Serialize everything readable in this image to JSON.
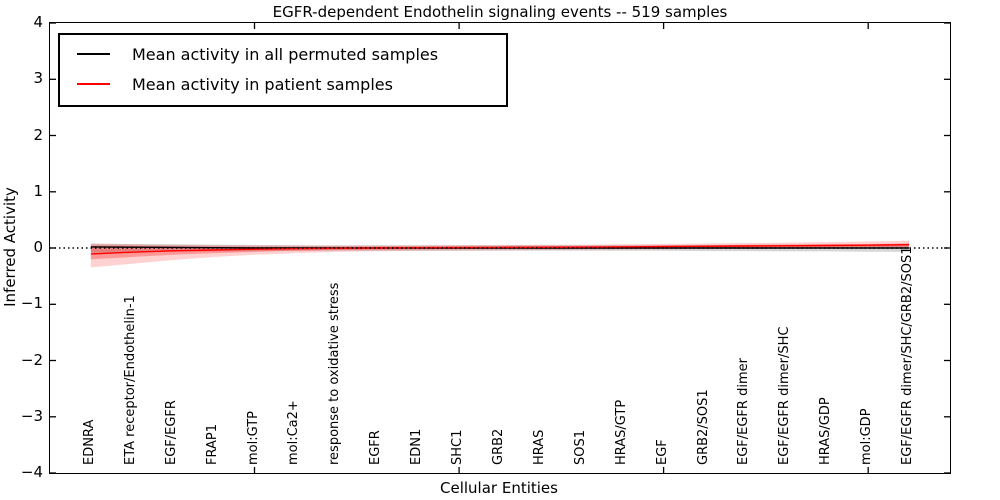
{
  "title": "EGFR-dependent Endothelin signaling events -- 519 samples",
  "legend": {
    "items": [
      {
        "label": "Mean activity in all permuted samples",
        "color": "#000000"
      },
      {
        "label": "Mean activity in patient samples",
        "color": "#ff0000"
      }
    ]
  },
  "axes": {
    "ylabel": "Inferred Activity",
    "xlabel": "Cellular Entities",
    "ylim": [
      -4,
      4
    ],
    "xlim": [
      0,
      22
    ],
    "yticks": [
      4,
      3,
      2,
      1,
      0,
      -1,
      -2,
      -3,
      -4
    ],
    "ytick_labels": [
      "4",
      "3",
      "2",
      "1",
      "0",
      "−1",
      "−2",
      "−3",
      "−4"
    ],
    "xticks": [
      5,
      10,
      15,
      20
    ],
    "grid": false,
    "legend_position": "upper left"
  },
  "chart_data": {
    "type": "line",
    "title": "EGFR-dependent Endothelin signaling events -- 519 samples",
    "xlabel": "Cellular Entities",
    "ylabel": "Inferred Activity",
    "ylim": [
      -4,
      4
    ],
    "xlim": [
      0,
      22
    ],
    "zero_line": true,
    "categories": [
      "EDNRA",
      "ETA receptor/Endothelin-1",
      "EGF/EGFR",
      "FRAP1",
      "mol:GTP",
      "mol:Ca2+",
      "response to oxidative stress",
      "EGFR",
      "EDN1",
      "SHC1",
      "GRB2",
      "HRAS",
      "SOS1",
      "HRAS/GTP",
      "EGF",
      "GRB2/SOS1",
      "EGF/EGFR dimer",
      "EGF/EGFR dimer/SHC",
      "HRAS/GDP",
      "mol:GDP",
      "EGF/EGFR dimer/SHC/GRB2/SOS1"
    ],
    "x": [
      1,
      2,
      3,
      4,
      5,
      6,
      7,
      8,
      9,
      10,
      11,
      12,
      13,
      14,
      15,
      16,
      17,
      18,
      19,
      20,
      21
    ],
    "series": [
      {
        "name": "Mean activity in all permuted samples",
        "color": "#000000",
        "values": [
          0.02,
          0.015,
          0.01,
          0.005,
          0.0,
          0.0,
          0.0,
          0.0,
          0.0,
          0.0,
          0.0,
          0.0,
          0.0,
          0.0,
          0.0,
          0.0,
          0.0,
          0.0,
          0.0,
          0.0,
          0.0
        ],
        "bands": [
          {
            "fill": "rgba(120,120,120,0.30)",
            "upper": [
              0.08,
              0.07,
              0.065,
              0.06,
              0.055,
              0.05,
              0.05,
              0.05,
              0.05,
              0.05,
              0.05,
              0.05,
              0.05,
              0.05,
              0.05,
              0.055,
              0.055,
              0.06,
              0.06,
              0.065,
              0.07
            ],
            "lower": [
              -0.08,
              -0.07,
              -0.065,
              -0.06,
              -0.055,
              -0.05,
              -0.05,
              -0.05,
              -0.05,
              -0.05,
              -0.05,
              -0.05,
              -0.05,
              -0.05,
              -0.05,
              -0.055,
              -0.055,
              -0.06,
              -0.06,
              -0.065,
              -0.07
            ]
          }
        ]
      },
      {
        "name": "Mean activity in patient samples",
        "color": "#ff0000",
        "values": [
          -0.105,
          -0.075,
          -0.05,
          -0.035,
          -0.022,
          -0.012,
          -0.005,
          0.0,
          0.005,
          0.008,
          0.01,
          0.012,
          0.015,
          0.02,
          0.025,
          0.03,
          0.035,
          0.04,
          0.045,
          0.05,
          0.06
        ],
        "bands": [
          {
            "fill": "rgba(255,0,0,0.18)",
            "upper": [
              0.075,
              0.065,
              0.058,
              0.05,
              0.045,
              0.042,
              0.04,
              0.042,
              0.045,
              0.048,
              0.052,
              0.056,
              0.06,
              0.066,
              0.072,
              0.08,
              0.088,
              0.096,
              0.105,
              0.115,
              0.13
            ],
            "lower": [
              -0.345,
              -0.28,
              -0.215,
              -0.16,
              -0.12,
              -0.09,
              -0.07,
              -0.058,
              -0.05,
              -0.044,
              -0.04,
              -0.036,
              -0.032,
              -0.028,
              -0.024,
              -0.02,
              -0.016,
              -0.012,
              -0.008,
              -0.004,
              0.0
            ]
          },
          {
            "fill": "rgba(255,0,0,0.28)",
            "upper": [
              0.045,
              0.04,
              0.032,
              0.027,
              0.024,
              0.022,
              0.022,
              0.024,
              0.026,
              0.028,
              0.03,
              0.033,
              0.036,
              0.04,
              0.045,
              0.05,
              0.055,
              0.06,
              0.065,
              0.07,
              0.08
            ],
            "lower": [
              -0.2,
              -0.16,
              -0.12,
              -0.09,
              -0.07,
              -0.05,
              -0.035,
              -0.028,
              -0.022,
              -0.018,
              -0.015,
              -0.012,
              -0.01,
              -0.008,
              -0.005,
              -0.002,
              0.0,
              0.005,
              0.01,
              0.015,
              0.02
            ]
          }
        ]
      }
    ]
  }
}
